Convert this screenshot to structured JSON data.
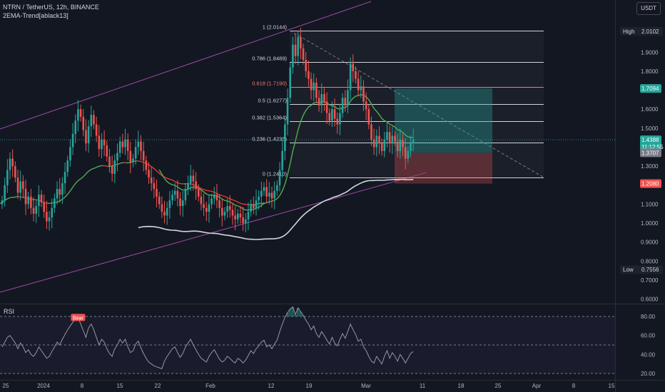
{
  "header": {
    "symbol_line": "NTRN / TetherUS, 12h, BINANCE",
    "indicator": "2EMA-Trend[ablack13]",
    "currency_button": "USDT"
  },
  "rsi_panel": {
    "label": "RSI"
  },
  "colors": {
    "background": "#131722",
    "up": "#26a69a",
    "down": "#ef5350",
    "ema_fast": "#4caf50",
    "ema_slow_up": "#4caf50",
    "ema_slow_down": "#e53935",
    "ema_long": "#cfd8dc",
    "channel": "#9c4ba8",
    "rsi_line": "#9598a1",
    "fib_line": "#d1d4dc",
    "fib_key": "#f57c6b",
    "target_zone": "#26a69a",
    "stop_zone": "#ef5350"
  },
  "chart_data": [
    {
      "type": "candlestick",
      "title": "NTRN / TetherUS, 12h, BINANCE",
      "price_axis_ticks": [
        "0.6000",
        "0.7000",
        "0.8000",
        "0.9000",
        "1.0000",
        "1.1000",
        "1.2000",
        "1.3000",
        "1.4000",
        "1.5000",
        "1.6000",
        "1.7000",
        "1.8000",
        "1.9000"
      ],
      "time_axis_ticks": [
        "25",
        "2024",
        "8",
        "15",
        "22",
        "Feb",
        "12",
        "19",
        "Mar",
        "11",
        "18",
        "25",
        "Apr",
        "8",
        "15"
      ],
      "ylim": [
        0.58,
        2.07
      ],
      "grid": false,
      "price_labels": [
        {
          "text": "High",
          "value": "2.0102",
          "price": 2.0102,
          "kind": "high"
        },
        {
          "text": "",
          "value": "1.7094",
          "price": 1.7094,
          "kind": "target"
        },
        {
          "text": "",
          "value": "1.4388",
          "price": 1.4388,
          "kind": "last"
        },
        {
          "text": "",
          "value": "11:12:55",
          "price": 1.402,
          "kind": "countdown"
        },
        {
          "text": "",
          "value": "1.3707",
          "price": 1.3707,
          "kind": "ema"
        },
        {
          "text": "",
          "value": "1.2080",
          "price": 1.208,
          "kind": "stop"
        },
        {
          "text": "Low",
          "value": "0.7556",
          "price": 0.7556,
          "kind": "low"
        }
      ],
      "fib_levels": [
        {
          "label": "1 (2.0144)",
          "price": 2.0144
        },
        {
          "label": "0.786 (1.8489)",
          "price": 1.8489
        },
        {
          "label": "0.618 (1.7190)",
          "price": 1.719,
          "key": true
        },
        {
          "label": "0.5 (1.6277)",
          "price": 1.6277
        },
        {
          "label": "0.382 (1.5364)",
          "price": 1.5364
        },
        {
          "label": "0.236 (1.4235)",
          "price": 1.4235
        },
        {
          "label": "0 (1.2410)",
          "price": 1.241
        }
      ],
      "position": {
        "entry": 1.3707,
        "target": 1.7094,
        "stop": 1.208
      },
      "closes": [
        1.12,
        1.2,
        1.28,
        1.34,
        1.3,
        1.24,
        1.16,
        1.22,
        1.18,
        1.1,
        1.14,
        1.08,
        1.05,
        1.09,
        1.15,
        1.11,
        1.06,
        1.01,
        1.03,
        1.08,
        1.13,
        1.18,
        1.15,
        1.21,
        1.27,
        1.33,
        1.4,
        1.47,
        1.54,
        1.6,
        1.56,
        1.49,
        1.42,
        1.51,
        1.57,
        1.52,
        1.46,
        1.39,
        1.44,
        1.41,
        1.35,
        1.3,
        1.26,
        1.33,
        1.37,
        1.43,
        1.4,
        1.44,
        1.38,
        1.32,
        1.34,
        1.4,
        1.43,
        1.38,
        1.33,
        1.28,
        1.24,
        1.21,
        1.18,
        1.14,
        1.1,
        1.06,
        1.04,
        1.08,
        1.12,
        1.15,
        1.17,
        1.13,
        1.09,
        1.12,
        1.18,
        1.21,
        1.25,
        1.22,
        1.18,
        1.14,
        1.1,
        1.08,
        1.06,
        1.1,
        1.13,
        1.15,
        1.12,
        1.08,
        1.04,
        1.06,
        1.09,
        1.07,
        1.04,
        1.02,
        1.05,
        1.03,
        1.0,
        1.02,
        1.06,
        1.1,
        1.08,
        1.12,
        1.14,
        1.17,
        1.19,
        1.14,
        1.16,
        1.13,
        1.17,
        1.2,
        1.28,
        1.38,
        1.52,
        1.66,
        1.82,
        1.94,
        1.88,
        1.98,
        1.92,
        1.86,
        1.8,
        1.76,
        1.7,
        1.74,
        1.66,
        1.62,
        1.68,
        1.64,
        1.58,
        1.54,
        1.6,
        1.55,
        1.52,
        1.58,
        1.66,
        1.62,
        1.7,
        1.84,
        1.8,
        1.76,
        1.7,
        1.72,
        1.64,
        1.6,
        1.52,
        1.44,
        1.4,
        1.46,
        1.42,
        1.38,
        1.44,
        1.48,
        1.42,
        1.46,
        1.43,
        1.38,
        1.44,
        1.4,
        1.34,
        1.38,
        1.42,
        1.44
      ]
    },
    {
      "type": "line",
      "title": "RSI",
      "ylim": [
        14,
        92
      ],
      "ticks": [
        "80.00",
        "60.00",
        "40.00",
        "20.00"
      ],
      "guide_lines": [
        80,
        50,
        20
      ],
      "annotations": [
        {
          "text": "Bear",
          "index": 16
        }
      ],
      "values": [
        48,
        53,
        58,
        60,
        56,
        52,
        46,
        52,
        48,
        42,
        45,
        40,
        38,
        42,
        48,
        44,
        40,
        36,
        38,
        43,
        48,
        53,
        50,
        56,
        61,
        66,
        70,
        74,
        77,
        79,
        72,
        65,
        58,
        68,
        72,
        66,
        58,
        50,
        56,
        53,
        46,
        41,
        38,
        46,
        50,
        56,
        52,
        56,
        48,
        42,
        44,
        51,
        54,
        47,
        41,
        36,
        32,
        30,
        28,
        27,
        26,
        25,
        33,
        38,
        42,
        46,
        48,
        42,
        37,
        41,
        48,
        52,
        56,
        50,
        45,
        40,
        36,
        34,
        32,
        38,
        42,
        45,
        40,
        35,
        32,
        34,
        38,
        36,
        33,
        31,
        36,
        34,
        31,
        34,
        39,
        44,
        41,
        46,
        49,
        53,
        55,
        48,
        50,
        46,
        51,
        55,
        64,
        72,
        79,
        84,
        88,
        90,
        82,
        89,
        85,
        81,
        76,
        72,
        66,
        70,
        62,
        58,
        64,
        60,
        55,
        51,
        58,
        52,
        49,
        56,
        62,
        57,
        64,
        72,
        66,
        61,
        54,
        56,
        48,
        44,
        38,
        33,
        31,
        38,
        34,
        30,
        38,
        44,
        36,
        42,
        38,
        33,
        40,
        36,
        31,
        36,
        41,
        43
      ]
    }
  ]
}
